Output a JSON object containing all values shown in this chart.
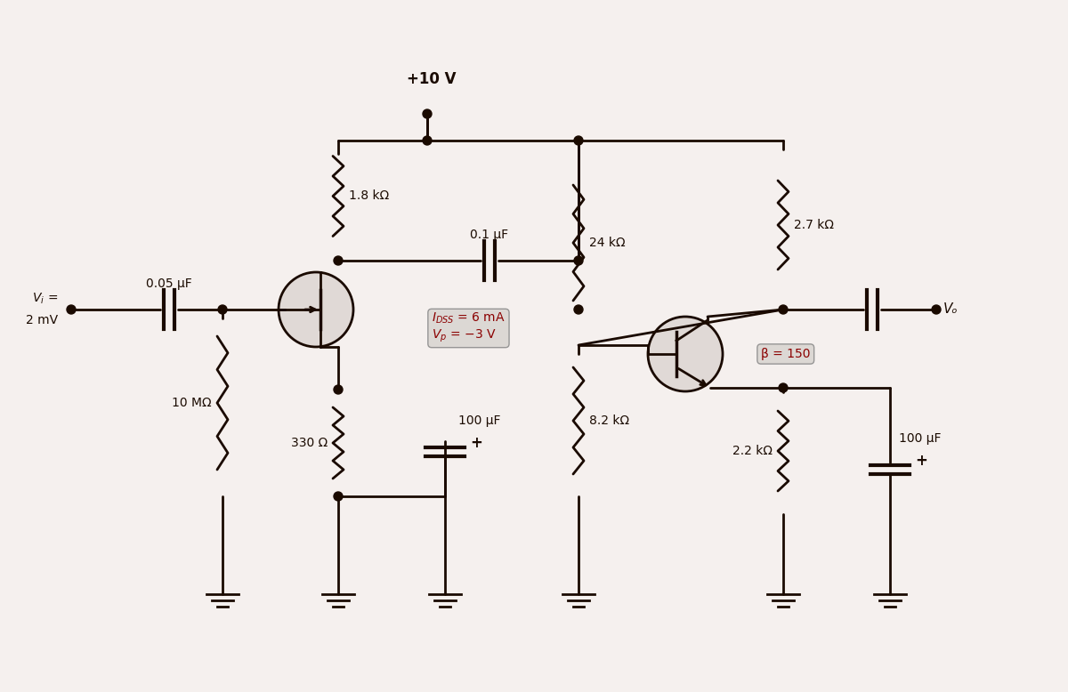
{
  "bg_color": "#f5f0ee",
  "line_color": "#1a0a00",
  "line_width": 2.0,
  "title": "",
  "labels": {
    "vi": "Vᴵ =\n2 mV",
    "cap1": "0.05 μF",
    "r_gate": "10 MΩ",
    "r_source": "330 Ω",
    "vdd": "+10 V",
    "cap2": "0.1 μF",
    "r_drain1": "1.8 kΩ",
    "cap3": "100 μF",
    "r_24k": "24 kΩ",
    "r_82k": "8.2 kΩ",
    "r_27k": "2.7 kΩ",
    "r_22k": "2.2 kΩ",
    "cap4": "100 μF",
    "vo": "Vₒ",
    "fet_label": "Iₑₛₛ = 6 mA\nVₚ = −3 V",
    "bjt_label": "β = 150"
  }
}
